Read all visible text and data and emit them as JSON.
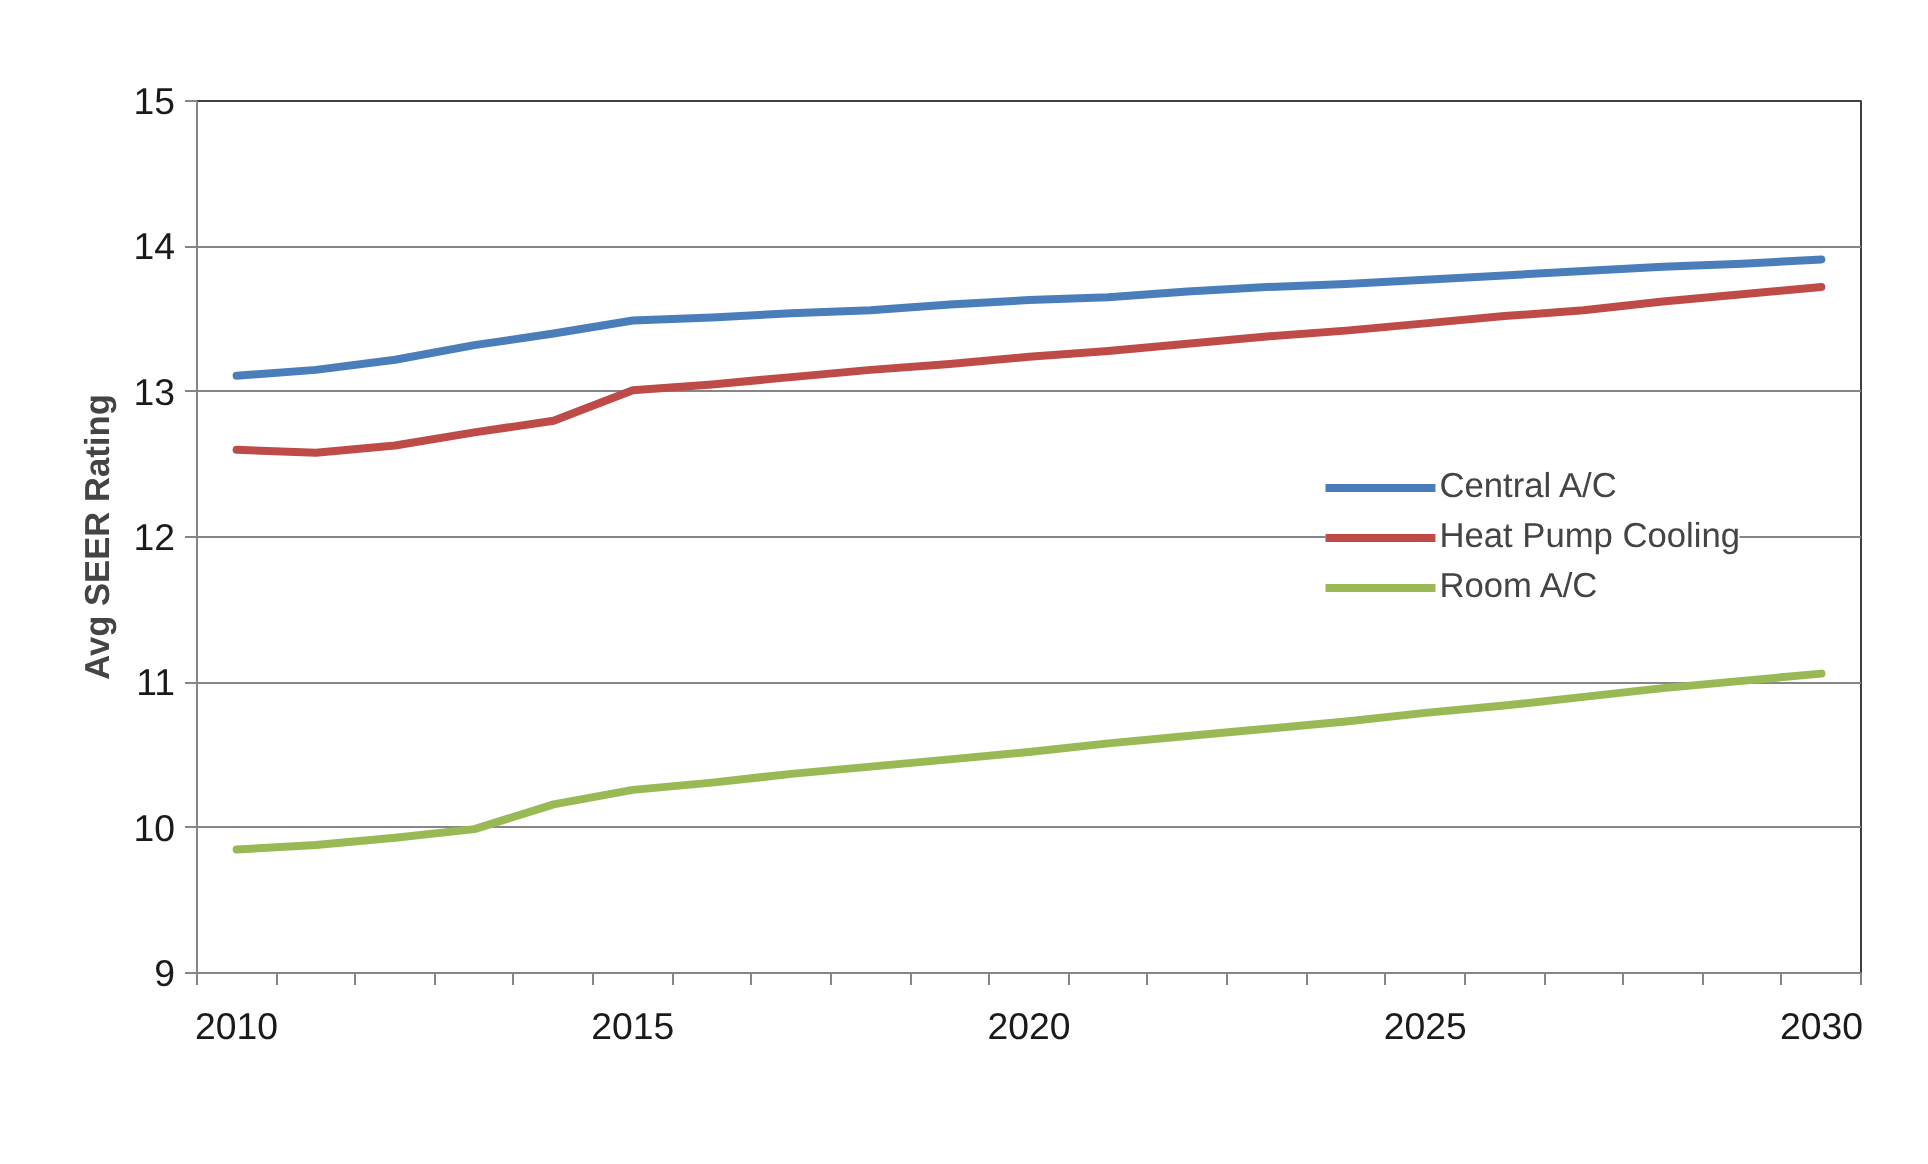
{
  "chart_data": {
    "type": "line",
    "ylabel": "Avg SEER Rating",
    "x": [
      2010,
      2011,
      2012,
      2013,
      2014,
      2015,
      2016,
      2017,
      2018,
      2019,
      2020,
      2021,
      2022,
      2023,
      2024,
      2025,
      2026,
      2027,
      2028,
      2029,
      2030
    ],
    "series": [
      {
        "name": "Central A/C",
        "color": "#4a7ebb",
        "values": [
          13.11,
          13.15,
          13.22,
          13.32,
          13.4,
          13.49,
          13.51,
          13.54,
          13.56,
          13.6,
          13.63,
          13.65,
          13.69,
          13.72,
          13.74,
          13.77,
          13.8,
          13.83,
          13.86,
          13.88,
          13.91
        ]
      },
      {
        "name": "Heat Pump Cooling",
        "color": "#be4b48",
        "values": [
          12.6,
          12.58,
          12.63,
          12.72,
          12.8,
          13.01,
          13.05,
          13.1,
          13.15,
          13.19,
          13.24,
          13.28,
          13.33,
          13.38,
          13.42,
          13.47,
          13.52,
          13.56,
          13.62,
          13.67,
          13.72
        ]
      },
      {
        "name": "Room A/C",
        "color": "#98b954",
        "values": [
          9.85,
          9.88,
          9.93,
          9.99,
          10.16,
          10.26,
          10.31,
          10.37,
          10.42,
          10.47,
          10.52,
          10.58,
          10.63,
          10.68,
          10.73,
          10.79,
          10.84,
          10.9,
          10.96,
          11.01,
          11.06
        ]
      }
    ],
    "xlim": [
      2009.5,
      2030.5
    ],
    "xticks": [
      2010,
      2015,
      2020,
      2025,
      2030
    ],
    "ylim": [
      9,
      15
    ],
    "yticks": [
      9,
      10,
      11,
      12,
      13,
      14,
      15
    ],
    "grid": "y",
    "legend": "right",
    "marker": "none",
    "line_style": "solid"
  }
}
